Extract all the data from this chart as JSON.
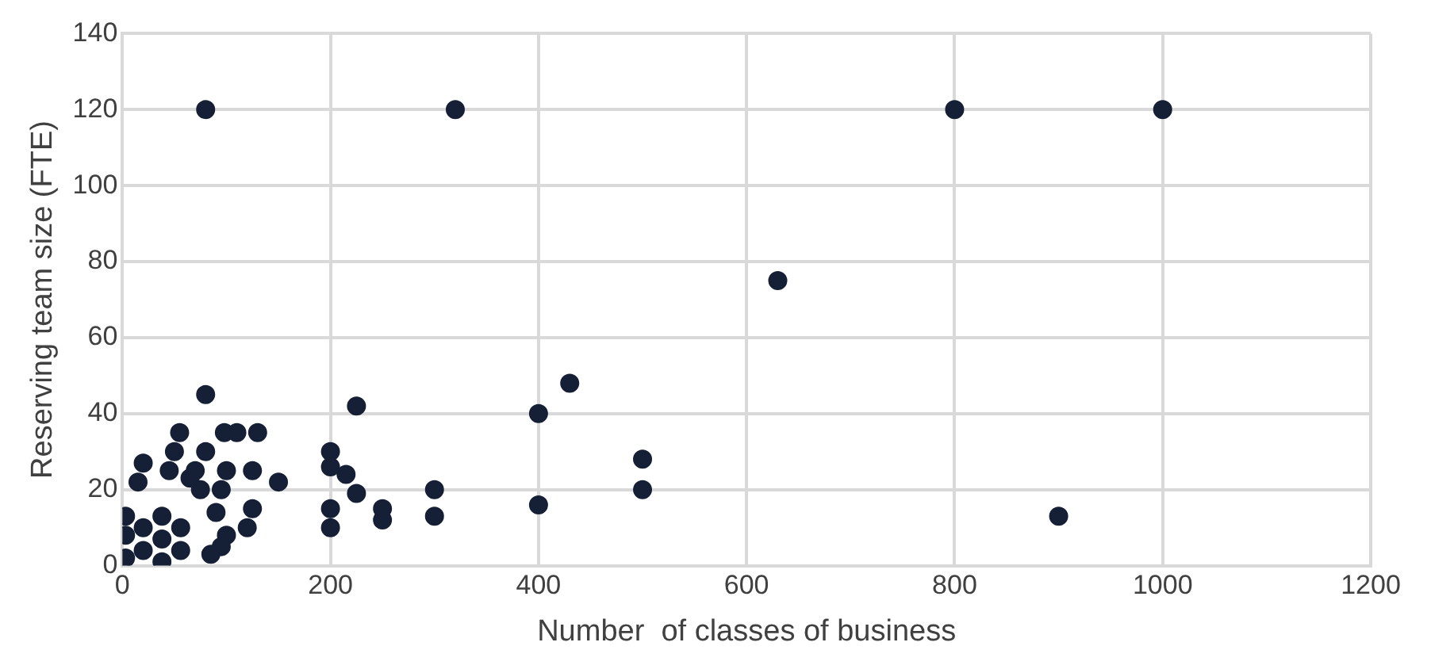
{
  "chart_data": {
    "type": "scatter",
    "xlabel": "Number  of classes of business",
    "ylabel": "Reserving team size (FTE)",
    "x": [
      80,
      320,
      800,
      1000,
      630,
      900,
      500,
      500,
      430,
      400,
      400,
      300,
      300,
      250,
      250,
      225,
      225,
      215,
      200,
      200,
      200,
      200,
      150,
      130,
      125,
      125,
      120,
      110,
      98,
      100,
      95,
      90,
      80,
      80,
      75,
      70,
      65,
      55,
      50,
      45,
      20,
      15,
      100,
      95,
      85,
      3,
      3,
      3,
      20,
      20,
      38,
      38,
      38,
      56,
      56
    ],
    "values": [
      120,
      120,
      120,
      120,
      75,
      13,
      28,
      20,
      48,
      40,
      16,
      20,
      13,
      15,
      12,
      42,
      19,
      24,
      30,
      26,
      15,
      10,
      22,
      35,
      25,
      15,
      10,
      35,
      35,
      25,
      20,
      14,
      45,
      30,
      20,
      25,
      23,
      35,
      30,
      25,
      27,
      22,
      8,
      5,
      3,
      2,
      8,
      13,
      4,
      10,
      1,
      7,
      13,
      4,
      10
    ],
    "color": "#152036",
    "marker": "circle",
    "xlim": [
      0,
      1200
    ],
    "ylim": [
      0,
      140
    ],
    "xticks": [
      0,
      200,
      400,
      600,
      800,
      {
        "value": 1000,
        "label": "1000"
      },
      {
        "value": 1200,
        "label": "1200"
      }
    ],
    "yticks": [
      0,
      20,
      40,
      60,
      80,
      100,
      120,
      140
    ],
    "grid": true,
    "legend": false
  }
}
